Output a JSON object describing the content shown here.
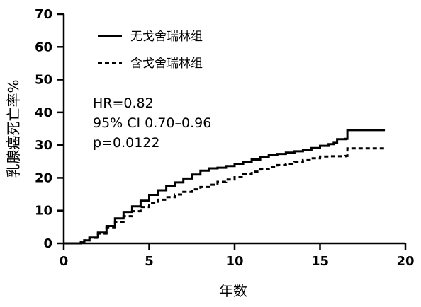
{
  "chart_data": {
    "type": "line",
    "title": "",
    "xlabel": "年数",
    "ylabel": "乳腺癌死亡率%",
    "xlim": [
      0,
      20
    ],
    "ylim": [
      0,
      70
    ],
    "x_ticks": [
      "0",
      "5",
      "10",
      "15",
      "20"
    ],
    "y_ticks": [
      "0",
      "10",
      "20",
      "30",
      "40",
      "50",
      "60",
      "70"
    ],
    "grid": false,
    "legend_position": "top-left",
    "series": [
      {
        "name": "无戈舍瑞林组",
        "style": "solid",
        "color": "#000000",
        "points": [
          [
            0,
            0
          ],
          [
            0.8,
            0
          ],
          [
            1,
            0.3
          ],
          [
            1.2,
            0.9
          ],
          [
            1.5,
            1.8
          ],
          [
            2,
            3.3
          ],
          [
            2.5,
            5.3
          ],
          [
            3,
            7.6
          ],
          [
            3.5,
            9.6
          ],
          [
            4,
            11.3
          ],
          [
            4.5,
            13
          ],
          [
            5,
            14.8
          ],
          [
            5.5,
            16.2
          ],
          [
            6,
            17.4
          ],
          [
            6.5,
            18.6
          ],
          [
            7,
            19.8
          ],
          [
            7.5,
            21
          ],
          [
            8,
            22.2
          ],
          [
            8.5,
            22.9
          ],
          [
            9,
            23.1
          ],
          [
            9.5,
            23.6
          ],
          [
            10,
            24.3
          ],
          [
            10.5,
            24.9
          ],
          [
            11,
            25.6
          ],
          [
            11.5,
            26.3
          ],
          [
            12,
            26.9
          ],
          [
            12.5,
            27.3
          ],
          [
            13,
            27.7
          ],
          [
            13.5,
            28.1
          ],
          [
            14,
            28.6
          ],
          [
            14.5,
            29.1
          ],
          [
            15,
            29.8
          ],
          [
            15.5,
            30.3
          ],
          [
            15.8,
            30.7
          ],
          [
            16,
            31.8
          ],
          [
            16.5,
            31.9
          ],
          [
            16.6,
            34.6
          ],
          [
            18.8,
            34.6
          ]
        ]
      },
      {
        "name": "含戈舍瑞林组",
        "style": "dashed",
        "color": "#000000",
        "points": [
          [
            0,
            0
          ],
          [
            0.8,
            0
          ],
          [
            1,
            0.3
          ],
          [
            1.2,
            0.9
          ],
          [
            1.5,
            1.7
          ],
          [
            2,
            3
          ],
          [
            2.5,
            4.7
          ],
          [
            3,
            6.6
          ],
          [
            3.5,
            8.3
          ],
          [
            4,
            9.8
          ],
          [
            4.5,
            11.1
          ],
          [
            5,
            12.3
          ],
          [
            5.5,
            13.3
          ],
          [
            6,
            14.1
          ],
          [
            6.5,
            14.9
          ],
          [
            7,
            15.7
          ],
          [
            7.5,
            16.5
          ],
          [
            8,
            17.2
          ],
          [
            8.5,
            17.9
          ],
          [
            9,
            18.8
          ],
          [
            9.5,
            19.5
          ],
          [
            10,
            20.2
          ],
          [
            10.5,
            21.1
          ],
          [
            11,
            21.9
          ],
          [
            11.5,
            22.6
          ],
          [
            12,
            23.3
          ],
          [
            12.5,
            23.9
          ],
          [
            13,
            24.3
          ],
          [
            13.5,
            24.8
          ],
          [
            14,
            25.4
          ],
          [
            14.5,
            26
          ],
          [
            15,
            26.5
          ],
          [
            15.5,
            26.6
          ],
          [
            16,
            26.6
          ],
          [
            16.5,
            26.7
          ],
          [
            16.6,
            29
          ],
          [
            18.8,
            29
          ]
        ]
      }
    ],
    "annotations": [
      "HR=0.82",
      "95% CI 0.70–0.96",
      "p=0.0122"
    ]
  }
}
